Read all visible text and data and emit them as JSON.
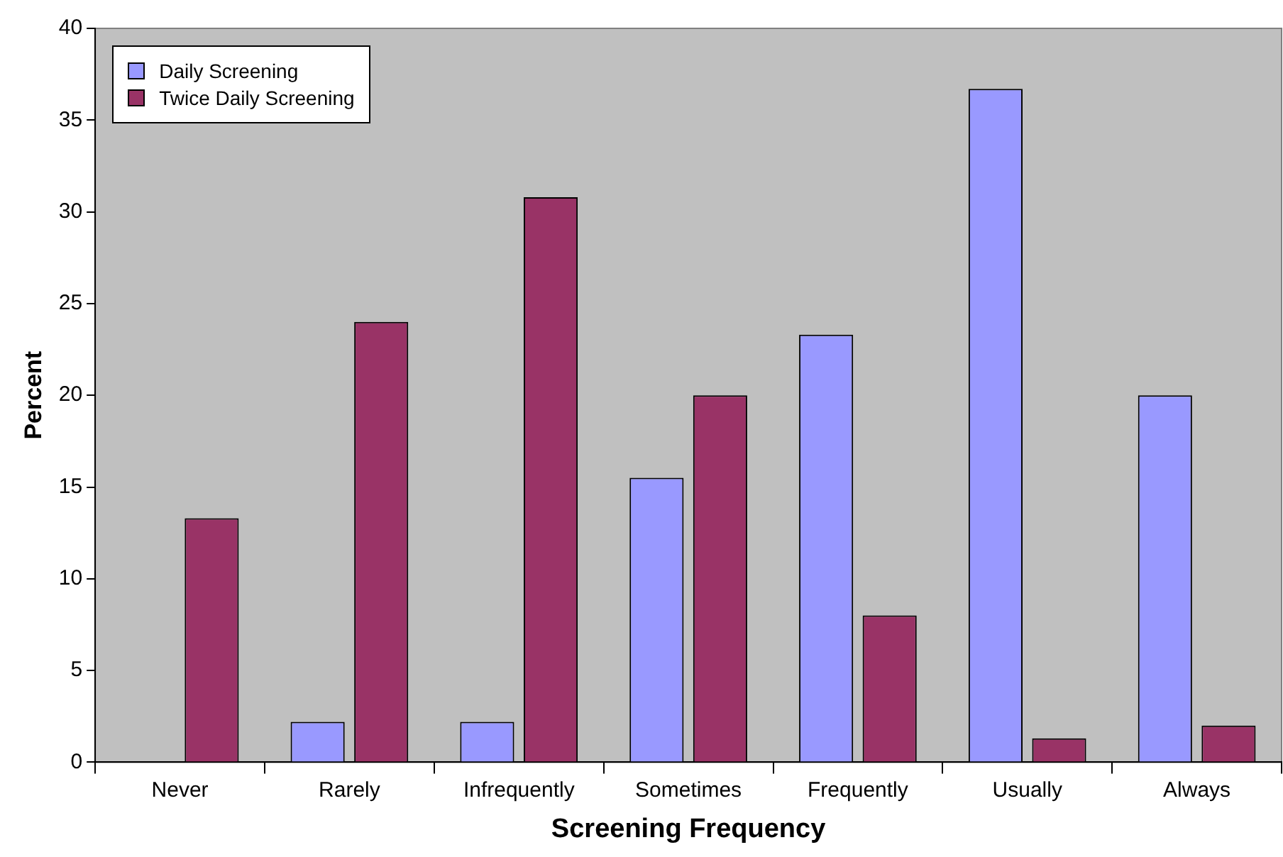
{
  "chart_data": {
    "type": "bar",
    "xlabel": "Screening Frequency",
    "ylabel": "Percent",
    "categories": [
      "Never",
      "Rarely",
      "Infrequently",
      "Sometimes",
      "Frequently",
      "Usually",
      "Always"
    ],
    "series": [
      {
        "name": "Daily Screening",
        "color": "#9999ff",
        "values": [
          0,
          2.2,
          2.2,
          15.5,
          23.3,
          36.7,
          20
        ]
      },
      {
        "name": "Twice Daily Screening",
        "color": "#993366",
        "values": [
          13.3,
          24,
          30.8,
          20,
          8,
          1.3,
          2
        ]
      }
    ],
    "ylim": [
      0,
      40
    ],
    "yticks": [
      0,
      5,
      10,
      15,
      20,
      25,
      30,
      35,
      40
    ],
    "grid": false,
    "legend": "top left"
  }
}
